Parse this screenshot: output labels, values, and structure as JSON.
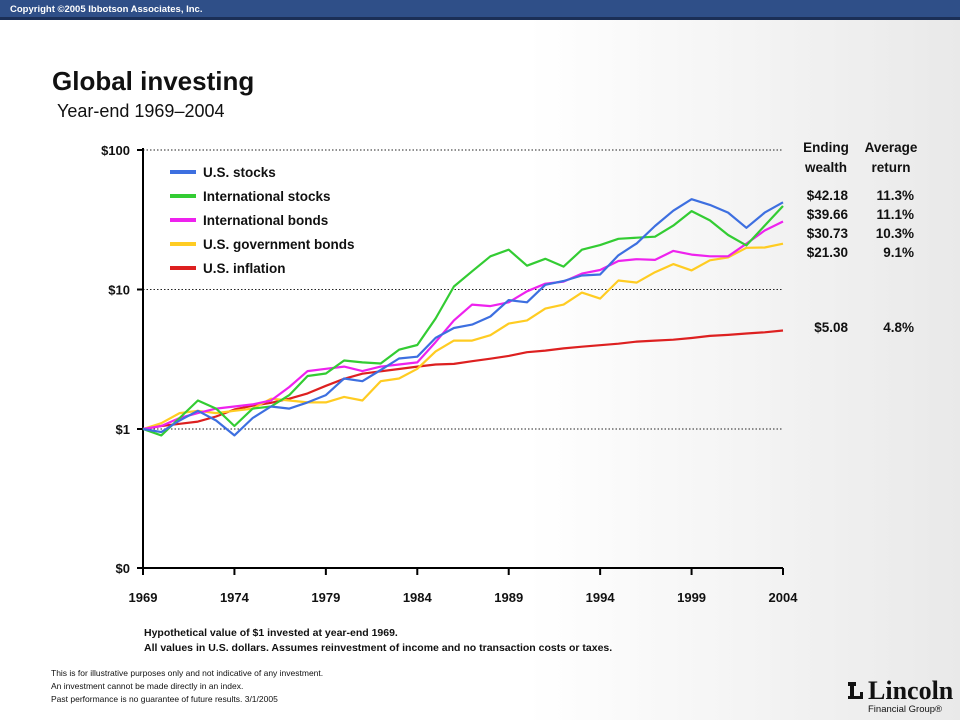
{
  "header": {
    "copyright": "Copyright ©2005 Ibbotson Associates, Inc."
  },
  "title": "Global investing",
  "subtitle": "Year-end 1969–2004",
  "notes": [
    "Hypothetical value of $1 invested at year-end 1969.",
    "All values in U.S. dollars. Assumes reinvestment of income and no transaction costs or taxes."
  ],
  "disclaimer": [
    "This is for illustrative purposes only and not indicative of any investment.",
    "An investment cannot be made directly in an index.",
    "Past performance is no guarantee of future results. 3/1/2005"
  ],
  "logo": {
    "name": "Lincoln",
    "tagline": "Financial Group®"
  },
  "table": {
    "header_ending": [
      "Ending",
      "wealth"
    ],
    "header_avg": [
      "Average",
      "return"
    ],
    "rows": [
      {
        "wealth": "$42.18",
        "ret": "11.3%"
      },
      {
        "wealth": "$39.66",
        "ret": "11.1%"
      },
      {
        "wealth": "$30.73",
        "ret": "10.3%"
      },
      {
        "wealth": "$21.30",
        "ret": "9.1%"
      },
      {
        "wealth": "$5.08",
        "ret": "4.8%"
      }
    ]
  },
  "chart_data": {
    "type": "line",
    "title": "",
    "xlabel": "",
    "ylabel": "",
    "y_scale": "log",
    "y_ticks": [
      0,
      1,
      10,
      100
    ],
    "y_tick_labels": [
      "$0",
      "$1",
      "$10",
      "$100"
    ],
    "x_ticks": [
      "1969",
      "1974",
      "1979",
      "1984",
      "1989",
      "1994",
      "1999",
      "2004"
    ],
    "xlim": [
      1969,
      2004
    ],
    "grid": "dotted horizontal at $1, $10, $100",
    "legend_position": "top-left",
    "series": [
      {
        "name": "U.S. stocks",
        "color": "#3d6fe0",
        "x": [
          1969,
          1970,
          1971,
          1972,
          1973,
          1974,
          1975,
          1976,
          1977,
          1978,
          1979,
          1980,
          1981,
          1982,
          1983,
          1984,
          1985,
          1986,
          1987,
          1988,
          1989,
          1990,
          1991,
          1992,
          1993,
          1994,
          1995,
          1996,
          1997,
          1998,
          1999,
          2000,
          2001,
          2002,
          2003,
          2004
        ],
        "y": [
          1.0,
          0.95,
          1.15,
          1.35,
          1.15,
          0.9,
          1.2,
          1.45,
          1.4,
          1.55,
          1.75,
          2.3,
          2.2,
          2.65,
          3.2,
          3.3,
          4.5,
          5.3,
          5.6,
          6.4,
          8.4,
          8.1,
          10.8,
          11.5,
          12.6,
          12.8,
          17.6,
          21.4,
          28.5,
          36.7,
          44.4,
          40.4,
          35.6,
          27.7,
          35.6,
          42.18
        ]
      },
      {
        "name": "International stocks",
        "color": "#33cc33",
        "x": [
          1969,
          1970,
          1971,
          1972,
          1973,
          1974,
          1975,
          1976,
          1977,
          1978,
          1979,
          1980,
          1981,
          1982,
          1983,
          1984,
          1985,
          1986,
          1987,
          1988,
          1989,
          1990,
          1991,
          1992,
          1993,
          1994,
          1995,
          1996,
          1997,
          1998,
          1999,
          2000,
          2001,
          2002,
          2003,
          2004
        ],
        "y": [
          1.0,
          0.9,
          1.2,
          1.6,
          1.4,
          1.05,
          1.4,
          1.45,
          1.75,
          2.4,
          2.5,
          3.1,
          3.0,
          2.95,
          3.7,
          4.0,
          6.2,
          10.5,
          13.5,
          17.3,
          19.3,
          14.8,
          16.6,
          14.6,
          19.3,
          20.8,
          23.1,
          23.5,
          23.9,
          28.7,
          36.5,
          31.3,
          24.6,
          20.7,
          28.7,
          39.66
        ]
      },
      {
        "name": "International bonds",
        "color": "#ee22ee",
        "x": [
          1969,
          1970,
          1971,
          1972,
          1973,
          1974,
          1975,
          1976,
          1977,
          1978,
          1979,
          1980,
          1981,
          1982,
          1983,
          1984,
          1985,
          1986,
          1987,
          1988,
          1989,
          1990,
          1991,
          1992,
          1993,
          1994,
          1995,
          1996,
          1997,
          1998,
          1999,
          2000,
          2001,
          2002,
          2003,
          2004
        ],
        "y": [
          1.0,
          1.05,
          1.2,
          1.3,
          1.4,
          1.45,
          1.5,
          1.6,
          2.0,
          2.6,
          2.7,
          2.8,
          2.6,
          2.8,
          2.9,
          3.0,
          4.2,
          6.0,
          7.8,
          7.6,
          8.1,
          9.7,
          11.0,
          11.4,
          13.0,
          13.8,
          16.0,
          16.5,
          16.3,
          18.9,
          17.8,
          17.3,
          17.3,
          21.3,
          26.5,
          30.73
        ]
      },
      {
        "name": "U.S. government bonds",
        "color": "#ffcc22",
        "x": [
          1969,
          1970,
          1971,
          1972,
          1973,
          1974,
          1975,
          1976,
          1977,
          1978,
          1979,
          1980,
          1981,
          1982,
          1983,
          1984,
          1985,
          1986,
          1987,
          1988,
          1989,
          1990,
          1991,
          1992,
          1993,
          1994,
          1995,
          1996,
          1997,
          1998,
          1999,
          2000,
          2001,
          2002,
          2003,
          2004
        ],
        "y": [
          1.0,
          1.1,
          1.3,
          1.35,
          1.3,
          1.35,
          1.4,
          1.65,
          1.6,
          1.55,
          1.55,
          1.7,
          1.6,
          2.2,
          2.3,
          2.7,
          3.6,
          4.3,
          4.3,
          4.7,
          5.7,
          6.0,
          7.3,
          7.8,
          9.5,
          8.6,
          11.6,
          11.2,
          13.3,
          15.2,
          13.7,
          16.2,
          17.0,
          19.9,
          20.0,
          21.3
        ]
      },
      {
        "name": "U.S. inflation",
        "color": "#dd2020",
        "x": [
          1969,
          1970,
          1971,
          1972,
          1973,
          1974,
          1975,
          1976,
          1977,
          1978,
          1979,
          1980,
          1981,
          1982,
          1983,
          1984,
          1985,
          1986,
          1987,
          1988,
          1989,
          1990,
          1991,
          1992,
          1993,
          1994,
          1995,
          1996,
          1997,
          1998,
          1999,
          2000,
          2001,
          2002,
          2003,
          2004
        ],
        "y": [
          1.0,
          1.05,
          1.09,
          1.13,
          1.23,
          1.38,
          1.47,
          1.54,
          1.65,
          1.8,
          2.04,
          2.29,
          2.49,
          2.59,
          2.69,
          2.8,
          2.9,
          2.93,
          3.06,
          3.19,
          3.34,
          3.55,
          3.65,
          3.78,
          3.89,
          3.99,
          4.09,
          4.23,
          4.3,
          4.37,
          4.49,
          4.65,
          4.73,
          4.84,
          4.93,
          5.08
        ]
      }
    ]
  }
}
